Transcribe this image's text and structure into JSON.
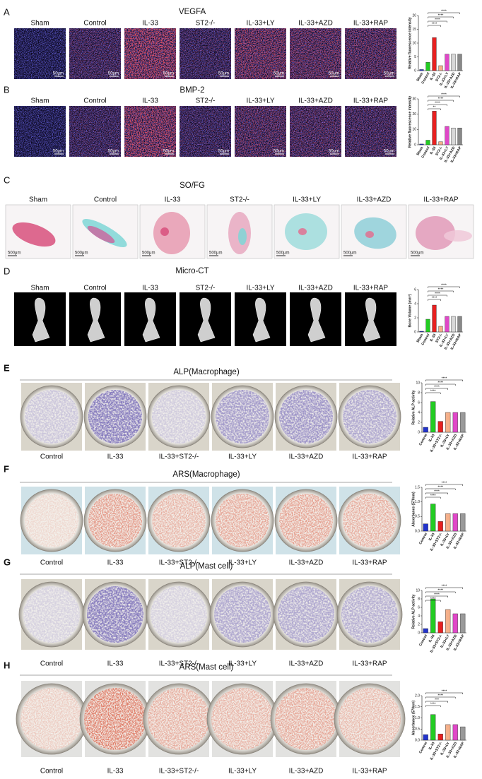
{
  "panels": [
    {
      "letter": "A",
      "title": "VEGFA",
      "title_color": "#e8211b",
      "labels": [
        "Sham",
        "Control",
        "IL-33",
        "ST2-/-",
        "IL-33+LY",
        "IL-33+AZD",
        "IL-33+RAP"
      ],
      "scale_bar": "50μm",
      "chart": {
        "type": "bar",
        "y_label": "Relative fluorescence intensity",
        "categories": [
          "Sham",
          "Control",
          "IL-33",
          "ST2-/-",
          "IL-33+LY",
          "IL-33+AZD",
          "IL-33+RAP"
        ],
        "values": [
          0.4,
          3,
          12,
          1.8,
          6,
          6,
          6
        ],
        "colors": [
          "#2233cc",
          "#22cc22",
          "#e82020",
          "#f5b08a",
          "#e048c8",
          "#d8d8d8",
          "#888888"
        ],
        "ylim": [
          0,
          20
        ],
        "yticks": [
          0,
          5,
          10,
          15,
          20
        ],
        "significance": [
          "****",
          "****",
          "****",
          "****"
        ]
      }
    },
    {
      "letter": "B",
      "title": "BMP-2",
      "title_color": "#e8211b",
      "labels": [
        "Sham",
        "Control",
        "IL-33",
        "ST2-/-",
        "IL-33+LY",
        "IL-33+AZD",
        "IL-33+RAP"
      ],
      "scale_bar": "50μm",
      "chart": {
        "type": "bar",
        "y_label": "Relative fluorescence intensity",
        "categories": [
          "Sham",
          "Control",
          "IL-33",
          "ST2-/-",
          "IL-33+LY",
          "IL-33+AZD",
          "IL-33+RAP"
        ],
        "values": [
          0.5,
          3,
          22,
          2,
          12,
          11,
          11
        ],
        "colors": [
          "#2233cc",
          "#22cc22",
          "#e82020",
          "#f5b08a",
          "#e048c8",
          "#d8d8d8",
          "#888888"
        ],
        "ylim": [
          0,
          30
        ],
        "yticks": [
          0,
          10,
          20,
          30
        ],
        "significance": [
          "****",
          "****",
          "****",
          "**"
        ]
      }
    },
    {
      "letter": "C",
      "title": "SO/FG",
      "title_color": "#22c8e0",
      "labels": [
        "Sham",
        "Control",
        "IL-33",
        "ST2-/-",
        "IL-33+LY",
        "IL-33+AZD",
        "IL-33+RAP"
      ],
      "scale_bar": "500μm"
    },
    {
      "letter": "D",
      "title": "Micro-CT",
      "title_color": "#111111",
      "labels": [
        "Sham",
        "Control",
        "IL-33",
        "ST2-/-",
        "IL-33+LY",
        "IL-33+AZD",
        "IL-33+RAP"
      ],
      "chart": {
        "type": "bar",
        "y_label": "Bone Volume (mm³)",
        "categories": [
          "Sham",
          "Control",
          "IL-33",
          "ST2-/-",
          "IL-33+LY",
          "IL-33+AZD",
          "IL-33+RAP"
        ],
        "values": [
          0.1,
          1.8,
          3.8,
          0.8,
          2.2,
          2.2,
          2.2
        ],
        "colors": [
          "#2233cc",
          "#22cc22",
          "#e82020",
          "#f5b08a",
          "#e048c8",
          "#d8d8d8",
          "#888888"
        ],
        "ylim": [
          0,
          6
        ],
        "yticks": [
          0,
          2,
          4,
          6
        ],
        "significance": [
          "****",
          "****",
          "****",
          "****"
        ]
      }
    },
    {
      "letter": "E",
      "title": "ALP(Macrophage)",
      "title_color": "#2222bb",
      "labels": [
        "Control",
        "IL-33",
        "IL-33+ST2-/-",
        "IL-33+LY",
        "IL-33+AZD",
        "IL-33+RAP"
      ],
      "chart": {
        "type": "bar",
        "y_label": "Relative ALP activity",
        "categories": [
          "Control",
          "IL-33",
          "IL-33+ST2-/-",
          "IL-33+LY",
          "IL-33+AZD",
          "IL-33+RAP"
        ],
        "values": [
          1,
          6.2,
          2.2,
          4,
          4,
          4
        ],
        "colors": [
          "#2233cc",
          "#22cc22",
          "#e82020",
          "#f5b08a",
          "#e048c8",
          "#9a9a9a"
        ],
        "ylim": [
          0,
          10
        ],
        "yticks": [
          0,
          2,
          4,
          6,
          8,
          10
        ],
        "significance": [
          "****",
          "****",
          "****",
          "****"
        ]
      }
    },
    {
      "letter": "F",
      "title": "ARS(Macrophage)",
      "title_color": "#e8211b",
      "labels": [
        "Control",
        "IL-33",
        "IL-33+ST2-/-",
        "IL-33+LY",
        "IL-33+AZD",
        "IL-33+RAP"
      ],
      "chart": {
        "type": "bar",
        "y_label": "Absorbance (570nm)",
        "categories": [
          "Control",
          "IL-33",
          "IL-33+ST2-/-",
          "IL-33+LY",
          "IL-33+AZD",
          "IL-33+RAP"
        ],
        "values": [
          0.25,
          0.93,
          0.33,
          0.6,
          0.6,
          0.6
        ],
        "colors": [
          "#2233cc",
          "#22cc22",
          "#e82020",
          "#f5b08a",
          "#e048c8",
          "#9a9a9a"
        ],
        "ylim": [
          0,
          1.5
        ],
        "yticks": [
          {
            "value": 0,
            "label": "0.0"
          },
          {
            "value": 0.5,
            "label": "0.5"
          },
          {
            "value": 1,
            "label": "1.0"
          },
          {
            "value": 1.5,
            "label": "1.5"
          }
        ],
        "significance": [
          "****",
          "****",
          "****",
          "****"
        ]
      }
    },
    {
      "letter": "G",
      "title": "ALP(Mast cell)",
      "title_color": "#2222bb",
      "labels": [
        "Control",
        "IL-33",
        "IL-33+ST2-/-",
        "IL-33+LY",
        "IL-33+AZD",
        "IL-33+RAP"
      ],
      "chart": {
        "type": "bar",
        "y_label": "Relative ALP activity",
        "categories": [
          "Control",
          "IL-33",
          "IL-33+ST2-/-",
          "IL-33+LY",
          "IL-33+AZD",
          "IL-33+RAP"
        ],
        "values": [
          1,
          8,
          2.6,
          5.5,
          4.5,
          4.5
        ],
        "colors": [
          "#2233cc",
          "#22cc22",
          "#e82020",
          "#f5b08a",
          "#e048c8",
          "#9a9a9a"
        ],
        "ylim": [
          0,
          10
        ],
        "yticks": [
          0,
          2,
          4,
          6,
          8,
          10
        ],
        "significance": [
          "****",
          "****",
          "****",
          "****"
        ]
      }
    },
    {
      "letter": "H",
      "title": "ARS(Mast cell)",
      "title_color": "#e8211b",
      "labels": [
        "Control",
        "IL-33",
        "IL-33+ST2-/-",
        "IL-33+LY",
        "IL-33+AZD",
        "IL-33+RAP"
      ],
      "chart": {
        "type": "bar",
        "y_label": "Absorbance (570nm)",
        "categories": [
          "Control",
          "IL-33",
          "IL-33+ST2-/-",
          "IL-33+LY",
          "IL-33+AZD",
          "IL-33+RAP"
        ],
        "values": [
          0.25,
          1.15,
          0.28,
          0.7,
          0.7,
          0.6
        ],
        "colors": [
          "#2233cc",
          "#22cc22",
          "#e82020",
          "#f5b08a",
          "#e048c8",
          "#9a9a9a"
        ],
        "ylim": [
          0,
          2
        ],
        "yticks": [
          {
            "value": 0,
            "label": "0.0"
          },
          {
            "value": 0.5,
            "label": "0.5"
          },
          {
            "value": 1,
            "label": "1.0"
          },
          {
            "value": 1.5,
            "label": "1.5"
          },
          {
            "value": 2,
            "label": "2.0"
          }
        ],
        "significance": [
          "****",
          "****",
          "***",
          "****"
        ]
      }
    }
  ]
}
